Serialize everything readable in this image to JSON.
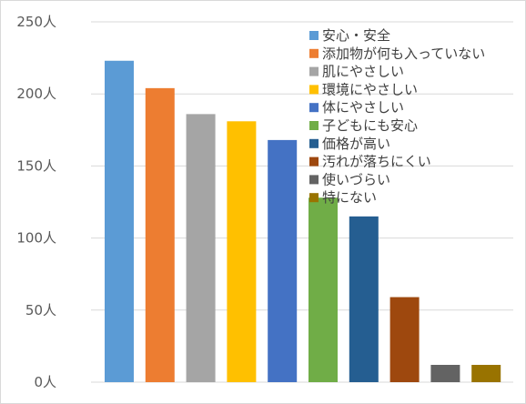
{
  "chart_data": {
    "type": "bar",
    "title": "",
    "xlabel": "",
    "ylabel": "",
    "ylim": [
      0,
      250
    ],
    "yticks": [
      {
        "value": 0,
        "label": "0人"
      },
      {
        "value": 50,
        "label": "50人"
      },
      {
        "value": 100,
        "label": "100人"
      },
      {
        "value": 150,
        "label": "150人"
      },
      {
        "value": 200,
        "label": "200人"
      },
      {
        "value": 250,
        "label": "250人"
      }
    ],
    "grid": true,
    "legend_position": "top-right",
    "categories": [
      "安心・安全",
      "添加物が何も入っていない",
      "肌にやさしい",
      "環境にやさしい",
      "体にやさしい",
      "子どもにも安心",
      "価格が高い",
      "汚れが落ちにくい",
      "使いづらい",
      "特にない"
    ],
    "values": [
      223,
      204,
      186,
      181,
      168,
      128,
      115,
      59,
      12,
      12
    ],
    "colors": [
      "#5b9bd5",
      "#ed7d31",
      "#a5a5a5",
      "#ffc000",
      "#4472c4",
      "#70ad47",
      "#255e91",
      "#9e480e",
      "#636363",
      "#997300"
    ]
  }
}
